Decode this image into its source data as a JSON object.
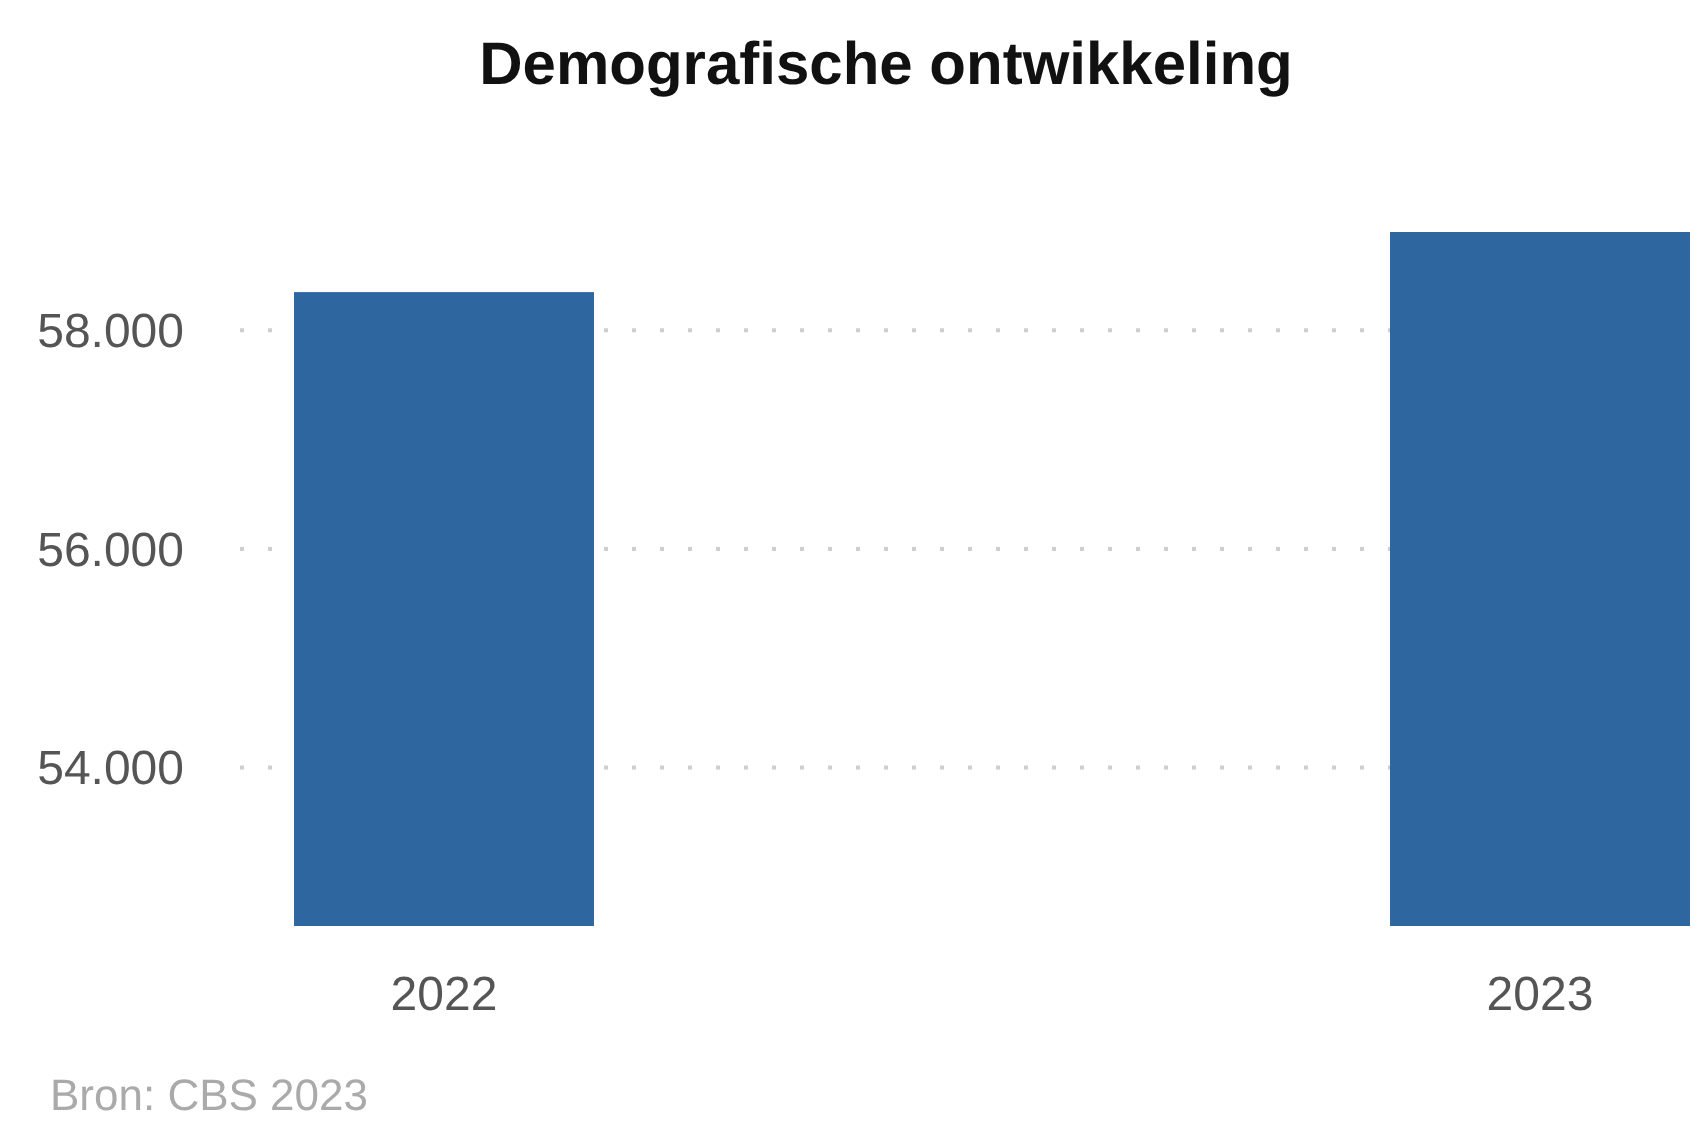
{
  "chart_data": {
    "type": "bar",
    "title": "Demografische ontwikkeling",
    "categories": [
      "2022",
      "2023"
    ],
    "values": [
      58350,
      58900
    ],
    "color": "#2e66a0",
    "ylim": [
      52550,
      58900
    ],
    "yticks": [
      {
        "value": 54000,
        "label": "54.000"
      },
      {
        "value": 56000,
        "label": "56.000"
      },
      {
        "value": 58000,
        "label": "58.000"
      }
    ],
    "grid": "y",
    "annotations": [
      "Bron: CBS 2023"
    ]
  }
}
